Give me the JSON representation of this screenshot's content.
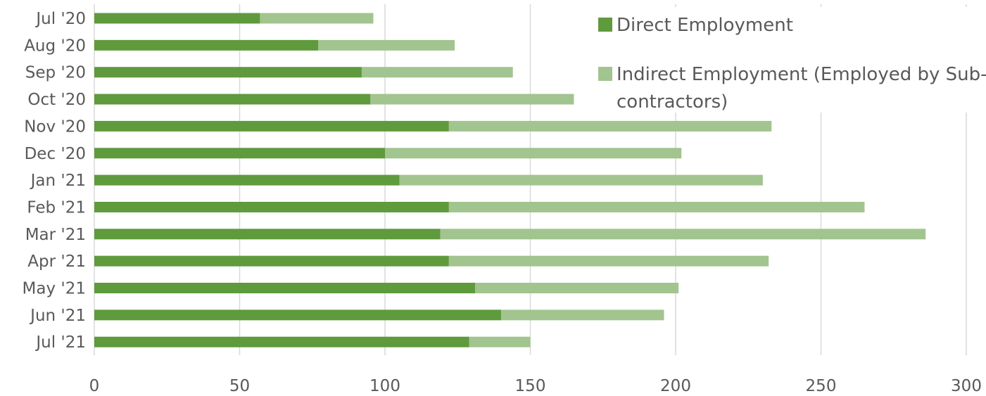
{
  "chart_data": {
    "type": "bar",
    "orientation": "horizontal",
    "stacked": true,
    "categories": [
      "Jul '20",
      "Aug '20",
      "Sep '20",
      "Oct '20",
      "Nov '20",
      "Dec '20",
      "Jan '21",
      "Feb '21",
      "Mar '21",
      "Apr '21",
      "May '21",
      "Jun '21",
      "Jul '21"
    ],
    "series": [
      {
        "name": "Direct Employment",
        "color": "#5f9a3d",
        "values": [
          57,
          77,
          92,
          95,
          122,
          100,
          105,
          122,
          119,
          122,
          131,
          140,
          129
        ]
      },
      {
        "name": "Indirect Employment (Employed by Sub-contractors)",
        "color": "#a2c48f",
        "values": [
          39,
          47,
          52,
          70,
          111,
          102,
          125,
          143,
          167,
          110,
          70,
          56,
          21
        ]
      }
    ],
    "xlim": [
      0,
      300
    ],
    "xticks": [
      "0",
      "50",
      "100",
      "150",
      "200",
      "250",
      "300"
    ],
    "grid": true,
    "legend_position": "top-right",
    "title": "",
    "xlabel": "",
    "ylabel": ""
  },
  "legend": {
    "direct_label": "Direct Employment",
    "indirect_line1": "Indirect Employment (Employed by Sub-",
    "indirect_line2": "contractors)"
  }
}
